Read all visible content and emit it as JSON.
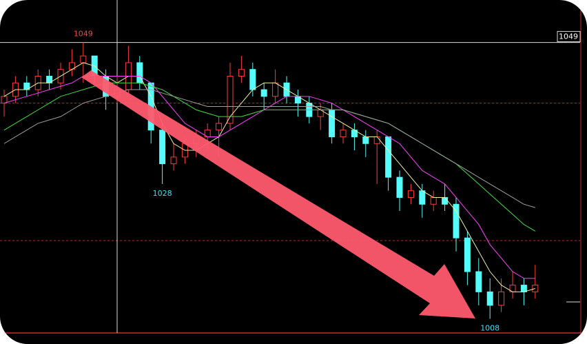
{
  "chart_data": {
    "type": "candlestick",
    "ylim": [
      1005.9,
      1055.3
    ],
    "grid_levels": [
      1040,
      1019.6
    ],
    "up_color": "#ff3c3c",
    "down_color": "#54fcfc",
    "candles": [
      [
        1040,
        1042,
        1038,
        1041
      ],
      [
        1041,
        1044,
        1040,
        1043
      ],
      [
        1043,
        1044,
        1041,
        1042
      ],
      [
        1042,
        1045,
        1041,
        1044
      ],
      [
        1044,
        1045,
        1042,
        1043
      ],
      [
        1043,
        1046,
        1042,
        1045
      ],
      [
        1045,
        1048,
        1044,
        1046
      ],
      [
        1046,
        1049,
        1043,
        1047
      ],
      [
        1047,
        1047,
        1043,
        1044
      ],
      [
        1044,
        1045,
        1039,
        1041
      ],
      [
        1041,
        1044,
        1040,
        1042
      ],
      [
        1042,
        1048.5,
        1041,
        1046
      ],
      [
        1046,
        1047,
        1042,
        1043
      ],
      [
        1043,
        1043,
        1034,
        1036
      ],
      [
        1036,
        1037,
        1028,
        1031
      ],
      [
        1031,
        1034,
        1030,
        1032
      ],
      [
        1032,
        1035,
        1031,
        1034
      ],
      [
        1034,
        1036,
        1032,
        1035
      ],
      [
        1035,
        1037,
        1033,
        1036
      ],
      [
        1036,
        1038,
        1032,
        1037
      ],
      [
        1037,
        1046,
        1036,
        1044
      ],
      [
        1044,
        1047,
        1043,
        1045
      ],
      [
        1045,
        1046,
        1041,
        1042
      ],
      [
        1042,
        1043,
        1039,
        1041
      ],
      [
        1041,
        1045,
        1040,
        1043
      ],
      [
        1043,
        1044,
        1040,
        1041
      ],
      [
        1041,
        1042,
        1038,
        1040
      ],
      [
        1040,
        1041,
        1037,
        1038
      ],
      [
        1038,
        1040,
        1036,
        1039
      ],
      [
        1039,
        1040,
        1034,
        1035
      ],
      [
        1035,
        1037,
        1034,
        1036
      ],
      [
        1036,
        1037,
        1033,
        1035
      ],
      [
        1035,
        1036,
        1032,
        1034
      ],
      [
        1034,
        1036,
        1028,
        1035
      ],
      [
        1035,
        1035,
        1027,
        1029
      ],
      [
        1029,
        1030,
        1024,
        1026
      ],
      [
        1026,
        1028,
        1025,
        1027
      ],
      [
        1027,
        1028,
        1023,
        1025
      ],
      [
        1025,
        1027,
        1024,
        1026
      ],
      [
        1026,
        1028,
        1024,
        1025
      ],
      [
        1025,
        1026,
        1018,
        1020
      ],
      [
        1020,
        1021,
        1013,
        1015
      ],
      [
        1015,
        1017,
        1010,
        1012
      ],
      [
        1012,
        1014,
        1008,
        1010
      ],
      [
        1010,
        1014,
        1009,
        1012
      ],
      [
        1012,
        1015,
        1011,
        1013
      ],
      [
        1013,
        1014,
        1010,
        1012
      ],
      [
        1012,
        1016,
        1011,
        1013
      ]
    ],
    "series": [
      {
        "color": "#f0f0a0",
        "values": [
          1041,
          1042,
          1042,
          1043,
          1043,
          1044,
          1045,
          1046,
          1045.5,
          1044,
          1043,
          1044,
          1044,
          1041,
          1037,
          1034,
          1033,
          1033,
          1034,
          1035,
          1038,
          1040,
          1042,
          1043,
          1043,
          1042,
          1041,
          1040,
          1039,
          1038,
          1037,
          1036,
          1035,
          1035,
          1033,
          1031,
          1029,
          1027,
          1026,
          1026,
          1024,
          1021,
          1018,
          1015,
          1013,
          1012,
          1012,
          1012.5
        ]
      },
      {
        "color": "#ff40ff",
        "values": [
          1040,
          1040.5,
          1041,
          1041.5,
          1042,
          1042.5,
          1043,
          1044,
          1044,
          1044,
          1044,
          1044,
          1044,
          1043,
          1041,
          1039,
          1037,
          1036,
          1035,
          1035,
          1036,
          1037,
          1038,
          1039,
          1040,
          1041,
          1041,
          1041,
          1040.5,
          1040,
          1039,
          1038,
          1037,
          1036,
          1035,
          1034,
          1032,
          1030,
          1029,
          1028,
          1026,
          1024,
          1022,
          1019,
          1017,
          1015,
          1014,
          1014
        ]
      },
      {
        "color": "#40e040",
        "values": [
          1036,
          1037,
          1038,
          1039,
          1040,
          1041,
          1041.5,
          1042,
          1042.5,
          1043,
          1043,
          1043,
          1043,
          1042.5,
          1042,
          1041,
          1040,
          1039,
          1038.5,
          1038,
          1038,
          1038,
          1038.5,
          1039,
          1039,
          1039,
          1039,
          1039,
          1039,
          1039,
          1039,
          1038.5,
          1038,
          1037.5,
          1037,
          1036,
          1035,
          1034,
          1033,
          1032,
          1031,
          1029.5,
          1028,
          1026.5,
          1025,
          1023.5,
          1022,
          1021
        ]
      },
      {
        "color": "#a0a0a0",
        "values": [
          1034,
          1035,
          1036,
          1037,
          1037.5,
          1038,
          1039,
          1040,
          1040.5,
          1041,
          1041.5,
          1042,
          1042,
          1042,
          1041.5,
          1041,
          1040.5,
          1040,
          1039.5,
          1039.5,
          1039.5,
          1039.5,
          1039.5,
          1039.5,
          1039.5,
          1039.5,
          1039.5,
          1039.5,
          1039.5,
          1039,
          1039,
          1038.5,
          1038,
          1037.5,
          1037,
          1036,
          1035,
          1034,
          1033,
          1032,
          1031,
          1030,
          1029,
          1028,
          1027,
          1026,
          1025,
          1024.5
        ]
      }
    ],
    "annotations": [
      {
        "value": 1049,
        "candle": 7,
        "color": "#ff4040"
      },
      {
        "value": 1028,
        "candle": 14,
        "color": "#40e0f0"
      },
      {
        "value": 1008,
        "candle": 43,
        "color": "#40e0f0"
      }
    ],
    "crosshair": {
      "value": 1049,
      "candle": 10
    }
  }
}
